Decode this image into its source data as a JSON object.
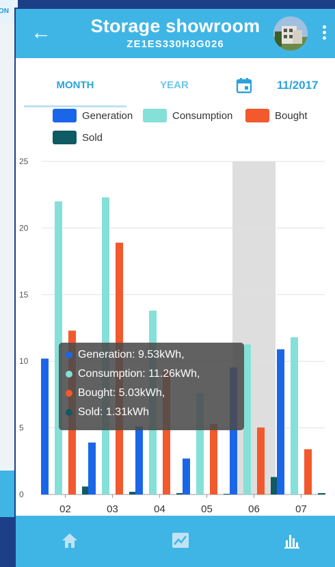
{
  "background_card": {
    "tag": "ON"
  },
  "header": {
    "title": "Storage showroom",
    "subtitle": "ZE1ES330H3G026"
  },
  "tabs": [
    {
      "label": "MONTH"
    },
    {
      "label": "YEAR"
    }
  ],
  "date_selector": {
    "value": "11/2017"
  },
  "colors": {
    "generation": "#1a66e8",
    "consumption": "#84e0d8",
    "bought": "#f2592d",
    "sold": "#0f5a63",
    "accent": "#3fb5e6"
  },
  "icons": {
    "back": "arrow-left-icon",
    "menu": "more-vert-icon",
    "calendar": "calendar-icon",
    "home": "home-icon",
    "trend": "trend-chart-icon",
    "bars": "bar-chart-icon"
  },
  "chart_data": {
    "type": "bar",
    "categories": [
      "02",
      "03",
      "04",
      "05",
      "06",
      "07"
    ],
    "series": [
      {
        "name": "Generation",
        "values": [
          10.2,
          3.9,
          5.1,
          2.7,
          9.53,
          10.9
        ]
      },
      {
        "name": "Consumption",
        "values": [
          22.0,
          22.3,
          13.8,
          7.6,
          11.26,
          11.8
        ]
      },
      {
        "name": "Bought",
        "values": [
          12.3,
          18.9,
          9.4,
          5.3,
          5.03,
          3.4
        ]
      },
      {
        "name": "Sold",
        "values": [
          0.6,
          0.2,
          0.05,
          0.0,
          1.31,
          0.1
        ]
      }
    ],
    "ylim": [
      0,
      25
    ],
    "yticks": [
      "0",
      "5",
      "10",
      "15",
      "20",
      "25"
    ],
    "highlighted_category": "06",
    "legend_position": "top",
    "grid": true
  },
  "tooltip": {
    "lines": [
      "Generation: 9.53kWh,",
      "Consumption: 11.26kWh,",
      "Bought: 5.03kWh,",
      "Sold: 1.31kWh"
    ]
  }
}
